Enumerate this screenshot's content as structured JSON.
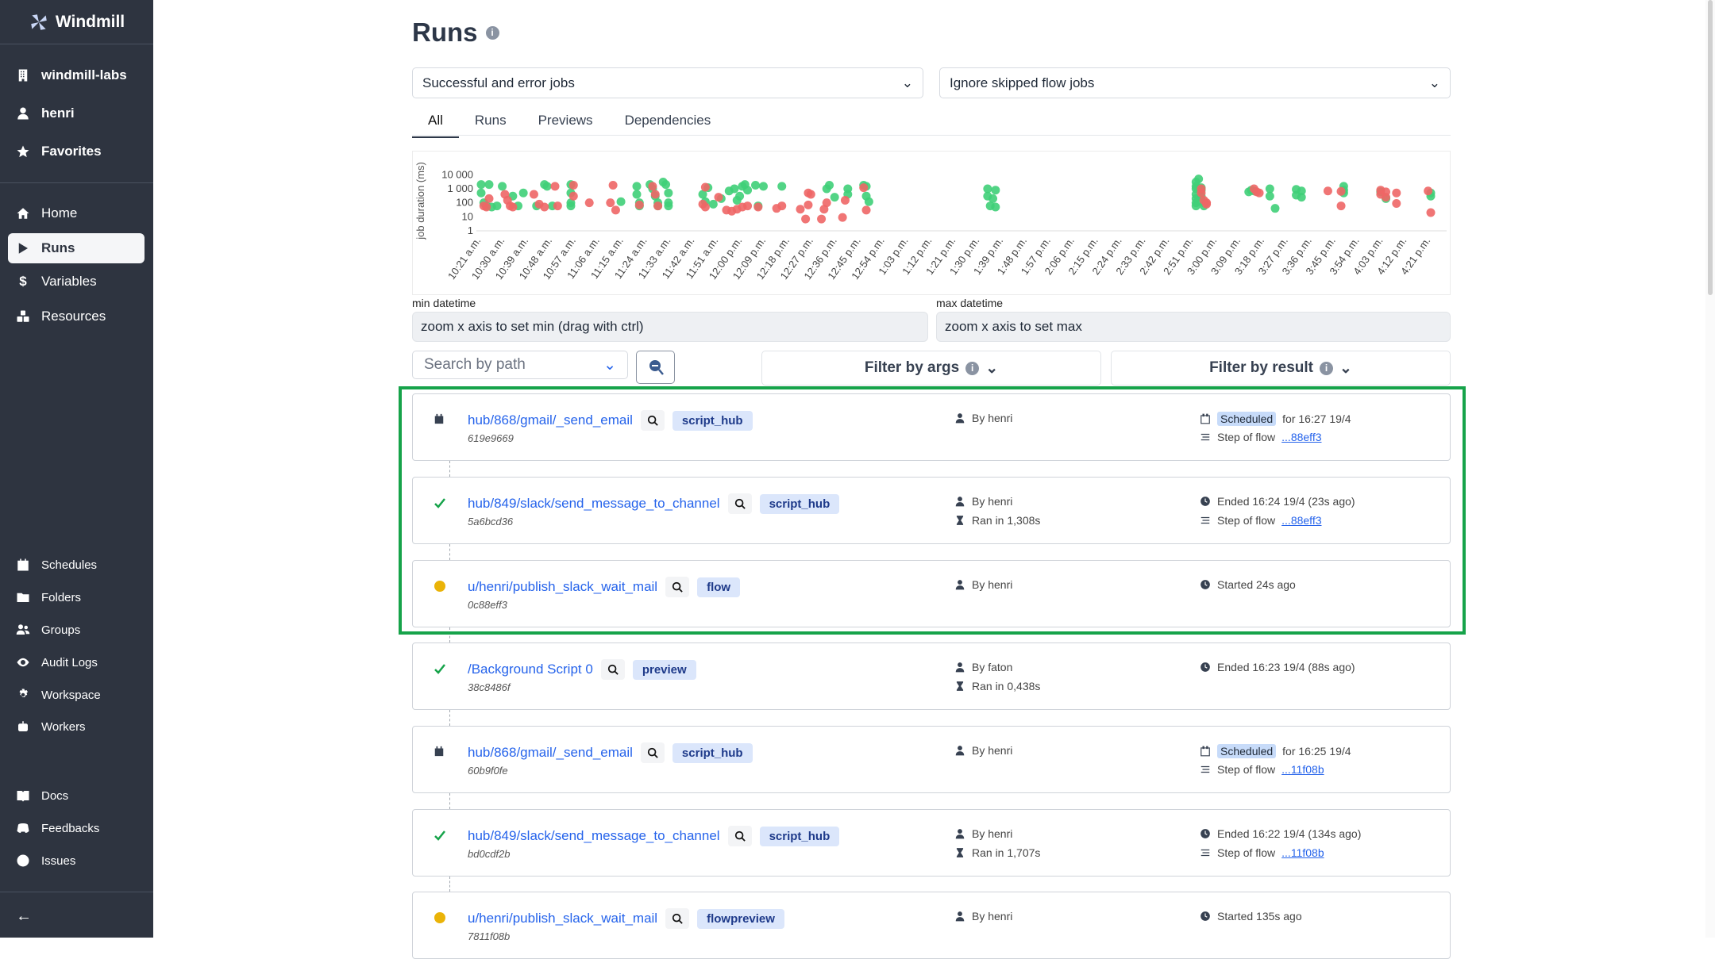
{
  "sidebar": {
    "brand": "Windmill",
    "workspace": "windmill-labs",
    "user": "henri",
    "favorites": "Favorites",
    "nav": [
      "Home",
      "Runs",
      "Variables",
      "Resources"
    ],
    "secondary": [
      "Schedules",
      "Folders",
      "Groups",
      "Audit Logs",
      "Workspace",
      "Workers"
    ],
    "links": [
      "Docs",
      "Feedbacks",
      "Issues"
    ],
    "active": "Runs"
  },
  "page": {
    "title": "Runs"
  },
  "filters": {
    "job_kind": "Successful and error jobs",
    "skipped": "Ignore skipped flow jobs"
  },
  "tabs": [
    "All",
    "Runs",
    "Previews",
    "Dependencies"
  ],
  "active_tab": "All",
  "chart_data": {
    "type": "scatter",
    "ylabel": "job duration (ms)",
    "yscale": "log",
    "yticks": [
      "10 000",
      "1 000",
      "100",
      "10",
      "1"
    ],
    "xticks": [
      "10:21 a.m.",
      "10:30 a.m.",
      "10:39 a.m.",
      "10:48 a.m.",
      "10:57 a.m.",
      "11:06 a.m.",
      "11:15 a.m.",
      "11:24 a.m.",
      "11:33 a.m.",
      "11:42 a.m.",
      "11:51 a.m.",
      "12:00 p.m.",
      "12:09 p.m.",
      "12:18 p.m.",
      "12:27 p.m.",
      "12:36 p.m.",
      "12:45 p.m.",
      "12:54 p.m.",
      "1:03 p.m.",
      "1:12 p.m.",
      "1:21 p.m.",
      "1:30 p.m.",
      "1:39 p.m.",
      "1:48 p.m.",
      "1:57 p.m.",
      "2:06 p.m.",
      "2:15 p.m.",
      "2:24 p.m.",
      "2:33 p.m.",
      "2:42 p.m.",
      "2:51 p.m.",
      "3:00 p.m.",
      "3:09 p.m.",
      "3:18 p.m.",
      "3:27 p.m.",
      "3:36 p.m.",
      "3:45 p.m.",
      "3:54 p.m.",
      "4:03 p.m.",
      "4:12 p.m.",
      "4:21 p.m."
    ],
    "colors": {
      "success": "#3fcf78",
      "failure": "#ee6666"
    },
    "success": [
      [
        "10:21",
        2000
      ],
      [
        "10:21",
        500
      ],
      [
        "10:22",
        100
      ],
      [
        "10:23",
        60
      ],
      [
        "10:24",
        2000
      ],
      [
        "10:25",
        50
      ],
      [
        "10:27",
        60
      ],
      [
        "10:29",
        1500
      ],
      [
        "10:33",
        300
      ],
      [
        "10:35",
        60
      ],
      [
        "10:37",
        500
      ],
      [
        "10:42",
        60
      ],
      [
        "10:45",
        2000
      ],
      [
        "10:46",
        1500
      ],
      [
        "10:48",
        60
      ],
      [
        "10:55",
        2000
      ],
      [
        "10:55",
        500
      ],
      [
        "10:55",
        100
      ],
      [
        "10:55",
        60
      ],
      [
        "11:14",
        120
      ],
      [
        "11:20",
        1500
      ],
      [
        "11:20",
        400
      ],
      [
        "11:21",
        100
      ],
      [
        "11:21",
        60
      ],
      [
        "11:25",
        2000
      ],
      [
        "11:26",
        1000
      ],
      [
        "11:27",
        300
      ],
      [
        "11:28",
        100
      ],
      [
        "11:28",
        60
      ],
      [
        "11:30",
        3000
      ],
      [
        "11:31",
        2000
      ],
      [
        "11:32",
        500
      ],
      [
        "11:32",
        100
      ],
      [
        "11:32",
        60
      ],
      [
        "11:45",
        400
      ],
      [
        "11:46",
        120
      ],
      [
        "11:47",
        1200
      ],
      [
        "11:49",
        80
      ],
      [
        "11:52",
        200
      ],
      [
        "11:55",
        700
      ],
      [
        "11:57",
        1000
      ],
      [
        "11:58",
        150
      ],
      [
        "11:59",
        300
      ],
      [
        "12:00",
        1500
      ],
      [
        "12:01",
        2000
      ],
      [
        "12:02",
        800
      ],
      [
        "12:05",
        1800
      ],
      [
        "12:06",
        60
      ],
      [
        "12:08",
        1500
      ],
      [
        "12:15",
        1500
      ],
      [
        "12:32",
        1000
      ],
      [
        "12:33",
        1800
      ],
      [
        "12:35",
        250
      ],
      [
        "12:40",
        1000
      ],
      [
        "12:40",
        400
      ],
      [
        "12:46",
        1800
      ],
      [
        "12:47",
        1500
      ],
      [
        "12:47",
        300
      ],
      [
        "12:48",
        120
      ],
      [
        "13:33",
        1000
      ],
      [
        "13:33",
        300
      ],
      [
        "13:34",
        60
      ],
      [
        "13:35",
        200
      ],
      [
        "13:36",
        800
      ],
      [
        "13:36",
        50
      ],
      [
        "14:52",
        3000
      ],
      [
        "14:53",
        5000
      ],
      [
        "14:52",
        1500
      ],
      [
        "14:52",
        1000
      ],
      [
        "14:52",
        400
      ],
      [
        "14:52",
        200
      ],
      [
        "14:52",
        100
      ],
      [
        "14:52",
        60
      ],
      [
        "14:54",
        1200
      ],
      [
        "14:54",
        800
      ],
      [
        "14:54",
        300
      ],
      [
        "14:55",
        100
      ],
      [
        "14:55",
        60
      ],
      [
        "15:12",
        600
      ],
      [
        "15:13",
        800
      ],
      [
        "15:14",
        700
      ],
      [
        "15:20",
        1000
      ],
      [
        "15:20",
        300
      ],
      [
        "15:22",
        40
      ],
      [
        "15:30",
        900
      ],
      [
        "15:30",
        350
      ],
      [
        "15:32",
        700
      ],
      [
        "15:32",
        250
      ],
      [
        "15:48",
        1500
      ],
      [
        "15:48",
        800
      ],
      [
        "15:48",
        500
      ],
      [
        "16:02",
        600
      ],
      [
        "16:04",
        200
      ],
      [
        "16:21",
        500
      ],
      [
        "16:21",
        300
      ]
    ],
    "failure": [
      [
        "10:22",
        60
      ],
      [
        "10:23",
        50
      ],
      [
        "10:24",
        200
      ],
      [
        "10:30",
        400
      ],
      [
        "10:31",
        150
      ],
      [
        "10:32",
        60
      ],
      [
        "10:33",
        50
      ],
      [
        "10:41",
        400
      ],
      [
        "10:43",
        80
      ],
      [
        "10:45",
        50
      ],
      [
        "10:49",
        1500
      ],
      [
        "10:50",
        60
      ],
      [
        "10:56",
        1800
      ],
      [
        "10:56",
        300
      ],
      [
        "11:02",
        100
      ],
      [
        "11:10",
        100
      ],
      [
        "11:11",
        1800
      ],
      [
        "11:12",
        30
      ],
      [
        "11:21",
        70
      ],
      [
        "11:26",
        1500
      ],
      [
        "11:27",
        400
      ],
      [
        "11:28",
        60
      ],
      [
        "11:45",
        80
      ],
      [
        "11:46",
        50
      ],
      [
        "11:46",
        1300
      ],
      [
        "11:51",
        250
      ],
      [
        "11:54",
        30
      ],
      [
        "11:56",
        25
      ],
      [
        "11:58",
        35
      ],
      [
        "12:00",
        50
      ],
      [
        "12:02",
        60
      ],
      [
        "12:06",
        50
      ],
      [
        "12:13",
        40
      ],
      [
        "12:15",
        60
      ],
      [
        "12:22",
        35
      ],
      [
        "12:24",
        7
      ],
      [
        "12:25",
        70
      ],
      [
        "12:25",
        500
      ],
      [
        "12:26",
        400
      ],
      [
        "12:30",
        7
      ],
      [
        "12:31",
        35
      ],
      [
        "12:32",
        100
      ],
      [
        "12:38",
        9
      ],
      [
        "12:39",
        150
      ],
      [
        "12:46",
        1200
      ],
      [
        "12:47",
        30
      ],
      [
        "14:54",
        1000
      ],
      [
        "14:54",
        500
      ],
      [
        "14:55",
        150
      ],
      [
        "14:56",
        100
      ],
      [
        "14:56",
        80
      ],
      [
        "15:14",
        1000
      ],
      [
        "15:15",
        600
      ],
      [
        "15:16",
        500
      ],
      [
        "15:42",
        700
      ],
      [
        "15:47",
        650
      ],
      [
        "15:47",
        60
      ],
      [
        "16:02",
        800
      ],
      [
        "16:02",
        400
      ],
      [
        "16:04",
        600
      ],
      [
        "16:04",
        250
      ],
      [
        "16:08",
        500
      ],
      [
        "16:08",
        90
      ],
      [
        "16:20",
        700
      ],
      [
        "16:21",
        20
      ]
    ]
  },
  "datetime": {
    "min_label": "min datetime",
    "min_value": "zoom x axis to set min (drag with ctrl)",
    "max_label": "max datetime",
    "max_value": "zoom x axis to set max"
  },
  "search": {
    "placeholder": "Search by path",
    "filter_args": "Filter by args",
    "filter_result": "Filter by result"
  },
  "runs": [
    {
      "status": "scheduled",
      "path": "hub/868/gmail/_send_email",
      "kind": "script_hub",
      "id": "619e9669",
      "by": "By henri",
      "duration": "",
      "time_chip": "Scheduled",
      "time": "for 16:27 19/4",
      "flow_label": "Step of flow",
      "flow": "...88eff3"
    },
    {
      "status": "success",
      "path": "hub/849/slack/send_message_to_channel",
      "kind": "script_hub",
      "id": "5a6bcd36",
      "by": "By henri",
      "duration": "Ran in 1,308s",
      "time_chip": "",
      "time": "Ended 16:24 19/4 (23s ago)",
      "flow_label": "Step of flow",
      "flow": "...88eff3"
    },
    {
      "status": "running",
      "path": "u/henri/publish_slack_wait_mail",
      "kind": "flow",
      "id": "0c88eff3",
      "by": "By henri",
      "duration": "",
      "time_chip": "",
      "time": "Started 24s ago",
      "flow_label": "",
      "flow": ""
    },
    {
      "status": "success",
      "path": "/Background Script 0",
      "kind": "preview",
      "id": "38c8486f",
      "by": "By faton",
      "duration": "Ran in 0,438s",
      "time_chip": "",
      "time": "Ended 16:23 19/4 (88s ago)",
      "flow_label": "",
      "flow": ""
    },
    {
      "status": "scheduled",
      "path": "hub/868/gmail/_send_email",
      "kind": "script_hub",
      "id": "60b9f0fe",
      "by": "By henri",
      "duration": "",
      "time_chip": "Scheduled",
      "time": "for 16:25 19/4",
      "flow_label": "Step of flow",
      "flow": "...11f08b"
    },
    {
      "status": "success",
      "path": "hub/849/slack/send_message_to_channel",
      "kind": "script_hub",
      "id": "bd0cdf2b",
      "by": "By henri",
      "duration": "Ran in 1,707s",
      "time_chip": "",
      "time": "Ended 16:22 19/4 (134s ago)",
      "flow_label": "Step of flow",
      "flow": "...11f08b"
    },
    {
      "status": "running",
      "path": "u/henri/publish_slack_wait_mail",
      "kind": "flowpreview",
      "id": "7811f08b",
      "by": "By henri",
      "duration": "",
      "time_chip": "",
      "time": "Started 135s ago",
      "flow_label": "",
      "flow": ""
    }
  ]
}
